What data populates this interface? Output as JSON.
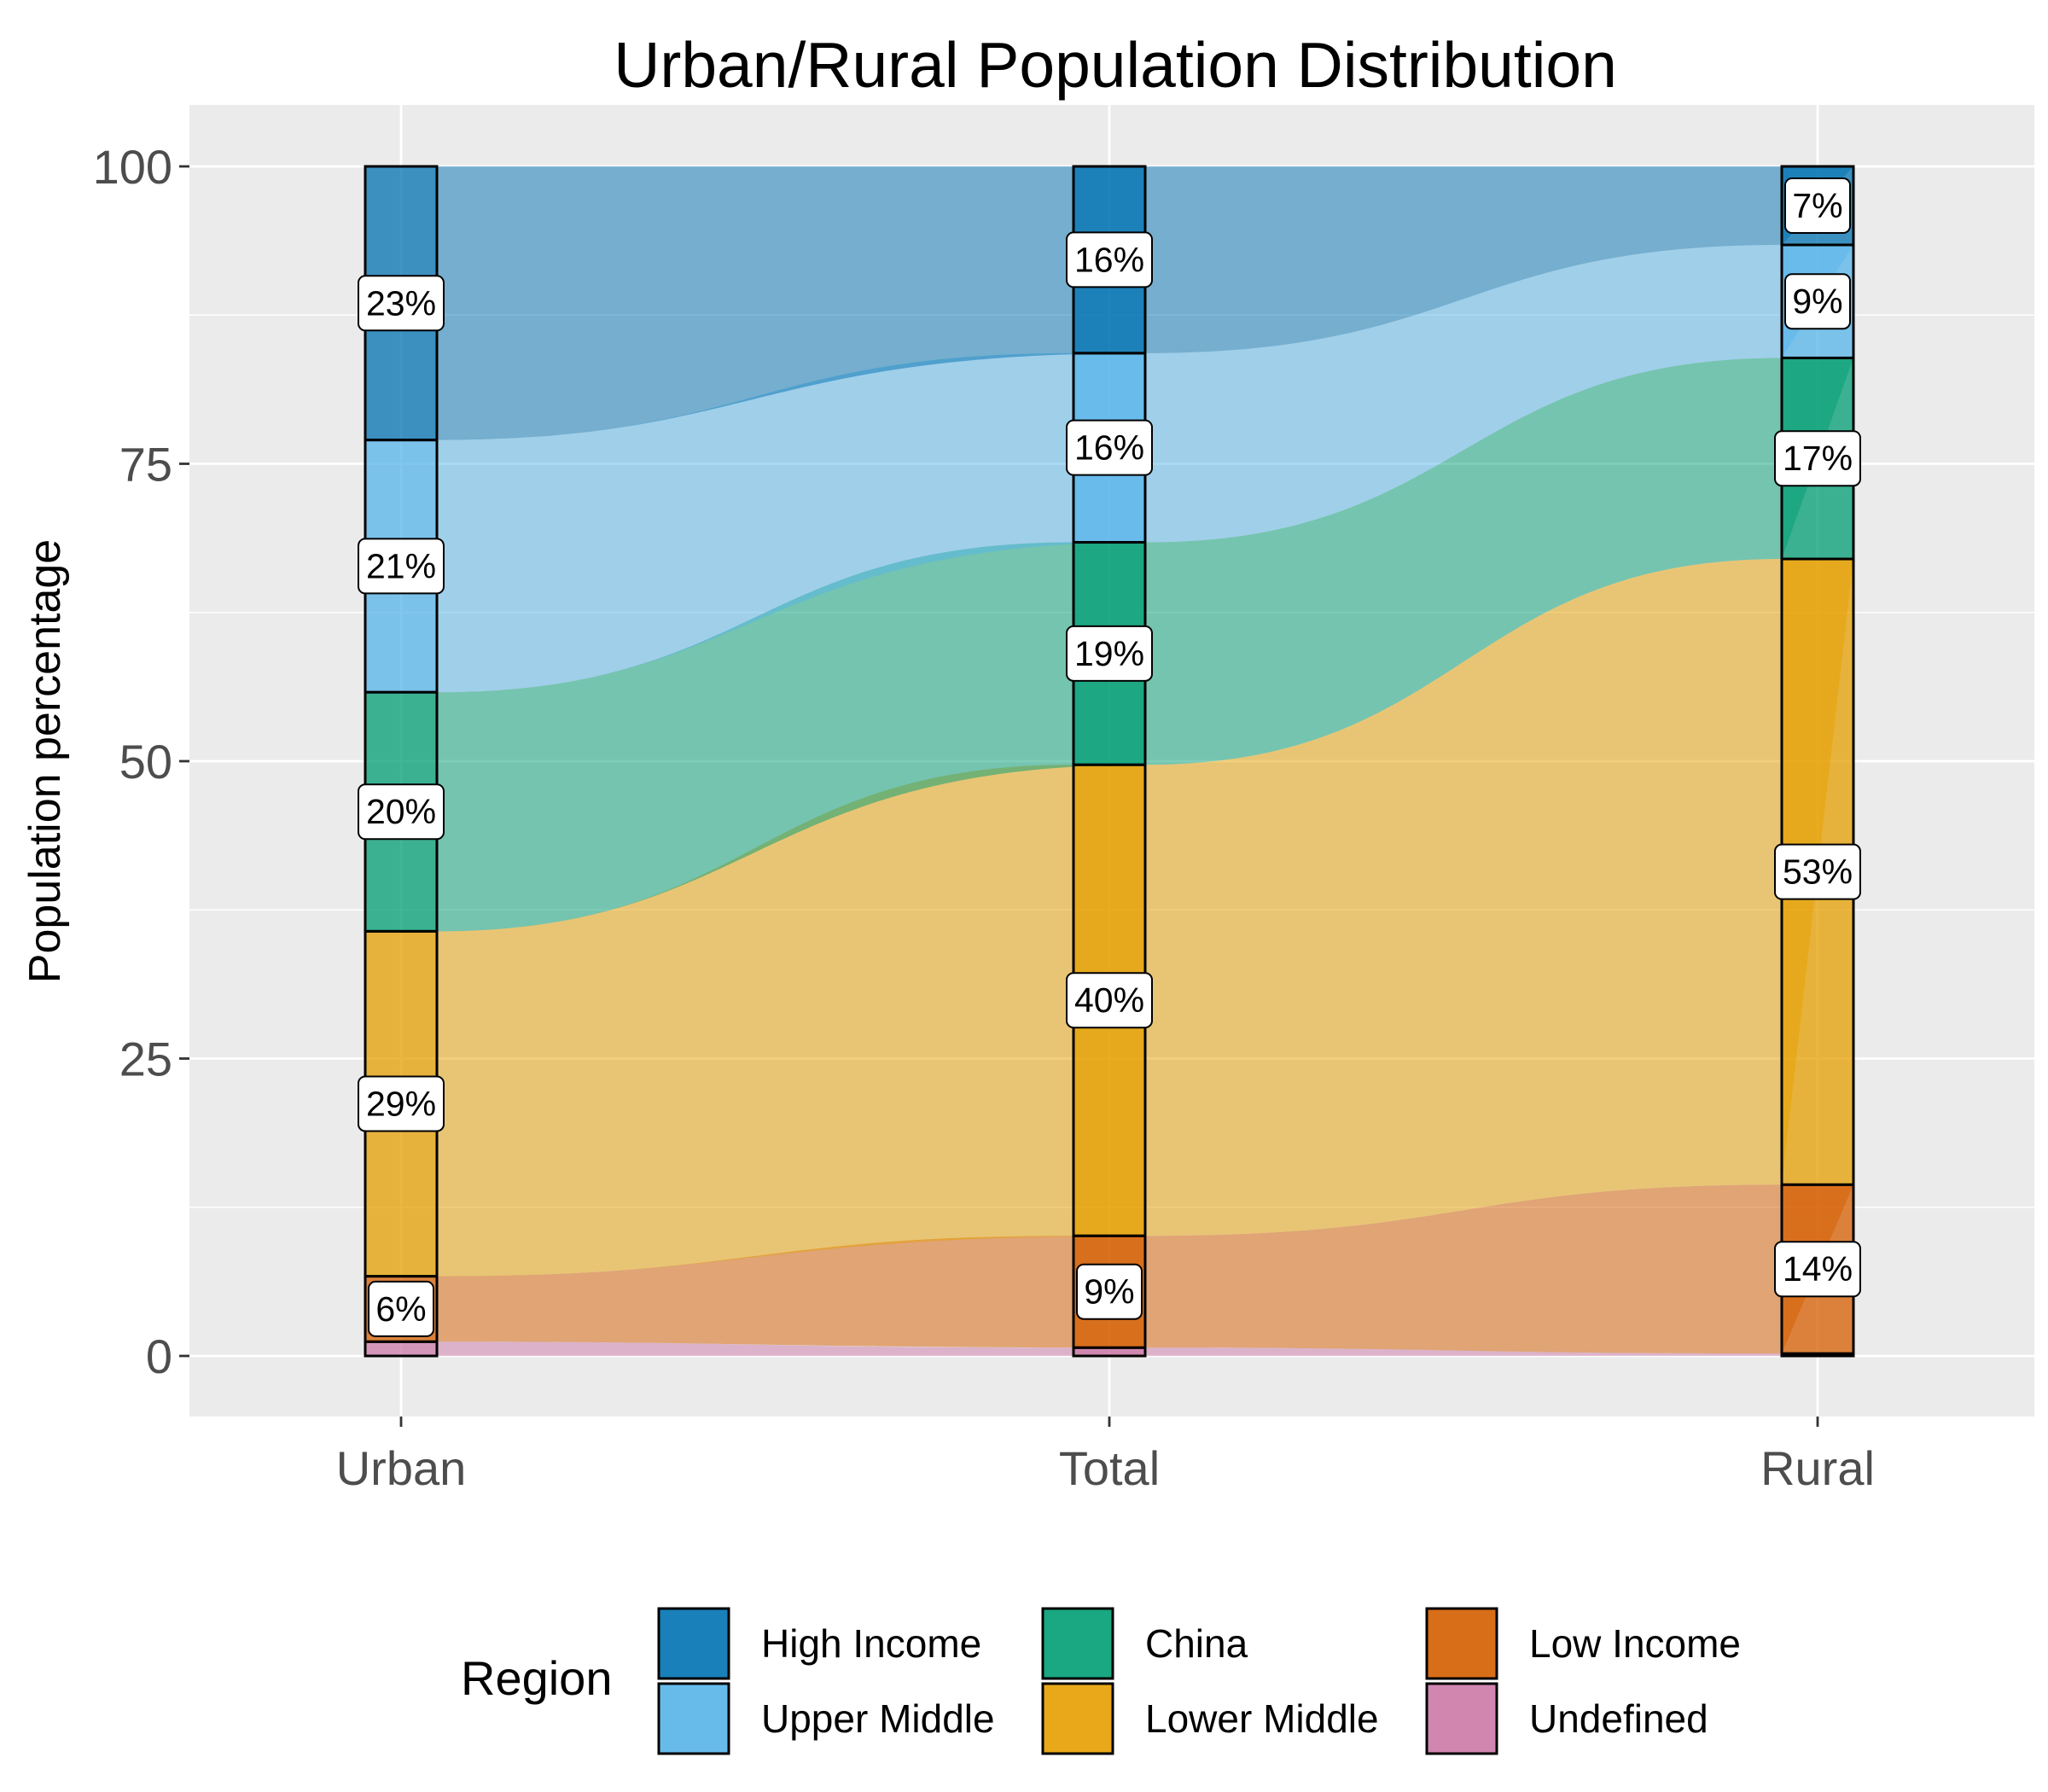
{
  "chart_data": {
    "type": "alluvial-stacked-bar",
    "title": "Urban/Rural Population Distribution",
    "xlabel": "",
    "ylabel": "Population percentage",
    "categories": [
      "Urban",
      "Total",
      "Rural"
    ],
    "ylim": [
      -5,
      105
    ],
    "yticks": [
      0,
      25,
      50,
      75,
      100
    ],
    "grid": true,
    "legend": {
      "title": "Region",
      "position": "bottom"
    },
    "series": [
      {
        "name": "Undefined",
        "color": "#CC79A7",
        "values": [
          1.2,
          0.7,
          0.2
        ],
        "labels": [
          "",
          "",
          ""
        ]
      },
      {
        "name": "Low Income",
        "color": "#D55E00",
        "values": [
          5.5,
          9.4,
          14.2
        ],
        "labels": [
          "6%",
          "9%",
          "14%"
        ]
      },
      {
        "name": "Lower Middle",
        "color": "#E69F00",
        "values": [
          29.0,
          39.6,
          52.6
        ],
        "labels": [
          "29%",
          "40%",
          "53%"
        ]
      },
      {
        "name": "China",
        "color": "#009E73",
        "values": [
          20.1,
          18.7,
          16.9
        ],
        "labels": [
          "20%",
          "19%",
          "17%"
        ]
      },
      {
        "name": "Upper Middle",
        "color": "#56B4E9",
        "values": [
          21.2,
          15.9,
          9.5
        ],
        "labels": [
          "21%",
          "16%",
          "9%"
        ]
      },
      {
        "name": "High Income",
        "color": "#0072B2",
        "values": [
          23.0,
          15.7,
          6.6
        ],
        "labels": [
          "23%",
          "16%",
          "7%"
        ]
      }
    ],
    "legend_order": [
      "High Income",
      "Upper Middle",
      "China",
      "Lower Middle",
      "Low Income",
      "Undefined"
    ]
  }
}
